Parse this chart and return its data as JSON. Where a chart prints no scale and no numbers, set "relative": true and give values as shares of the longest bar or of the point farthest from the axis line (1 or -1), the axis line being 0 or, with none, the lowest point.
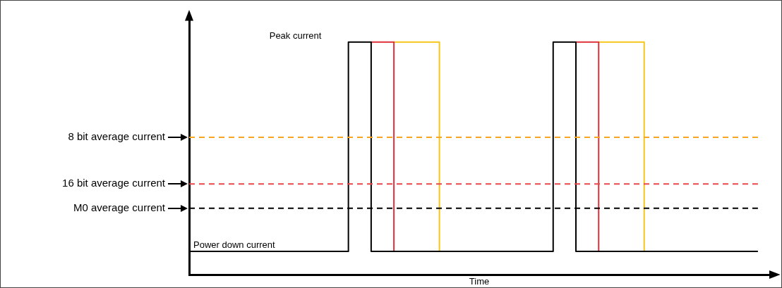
{
  "chart_data": {
    "type": "step",
    "relative": true,
    "xlabel": "Time",
    "tick_labels": false,
    "grid": false,
    "legend": false,
    "categories": [
      null,
      null,
      null,
      null,
      null,
      null,
      null,
      null,
      null,
      null,
      null,
      null,
      null,
      null,
      null,
      null,
      null,
      null,
      null,
      null,
      null,
      null,
      null,
      null,
      null,
      null
    ],
    "series": [
      {
        "color": "#000000",
        "values": [
          0.1,
          0.1,
          0.1,
          0.1,
          0.1,
          0.1,
          0.1,
          1,
          0.1,
          0.1,
          0.1,
          0.1,
          0.1,
          0.1,
          0.1,
          0.1,
          1,
          0.1,
          0.1,
          0.1,
          0.1,
          0.1,
          0.1,
          0.1,
          0.1,
          0.1
        ]
      },
      {
        "color": "#e0303a",
        "values": [
          null,
          null,
          null,
          null,
          null,
          null,
          null,
          null,
          1,
          0.1,
          null,
          null,
          null,
          null,
          null,
          null,
          null,
          1,
          0.1,
          null,
          null,
          null,
          null,
          null,
          null,
          null
        ]
      },
      {
        "color": "#f5c518",
        "values": [
          null,
          null,
          null,
          null,
          null,
          null,
          null,
          null,
          null,
          1,
          1,
          0.1,
          null,
          null,
          null,
          null,
          null,
          null,
          1,
          1,
          0.1,
          null,
          null,
          null,
          null,
          null
        ]
      }
    ],
    "ref_lines": [
      {
        "axis": "y",
        "value": 0.59,
        "label": "8 bit average current",
        "color": "#f5a623",
        "line_style": "dashed"
      },
      {
        "axis": "y",
        "value": 0.39,
        "label": "16 bit average current",
        "color": "#e8474b",
        "line_style": "dashed"
      },
      {
        "axis": "y",
        "value": 0.285,
        "label": "M0 average current",
        "color": "#000000",
        "line_style": "dashed"
      }
    ],
    "annotations": [
      "Peak current",
      "Power down current"
    ]
  }
}
